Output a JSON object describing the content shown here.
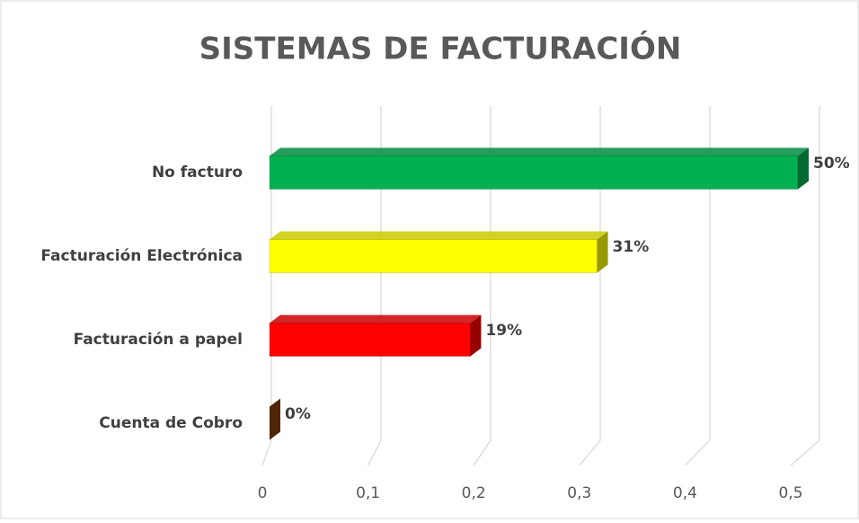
{
  "chart_data": {
    "type": "bar",
    "orientation": "horizontal",
    "title": "SISTEMAS DE FACTURACIÓN",
    "categories": [
      "No facturo",
      "Facturación Electrónica",
      "Facturación a papel",
      "Cuenta de Cobro"
    ],
    "values": [
      0.5,
      0.31,
      0.19,
      0
    ],
    "value_labels": [
      "50%",
      "31%",
      "19%",
      "0%"
    ],
    "colors": [
      "#00b050",
      "#ffff00",
      "#ff0000",
      "#843c0c"
    ],
    "xlim": [
      0,
      0.5
    ],
    "xticks": [
      0,
      {
        "value": 0.1,
        "label": "0,1"
      },
      {
        "value": 0.2,
        "label": "0,2"
      },
      {
        "value": 0.3,
        "label": "0,3"
      },
      {
        "value": 0.4,
        "label": "0,4"
      },
      {
        "value": 0.5,
        "label": "0,5"
      }
    ],
    "grid": true
  }
}
